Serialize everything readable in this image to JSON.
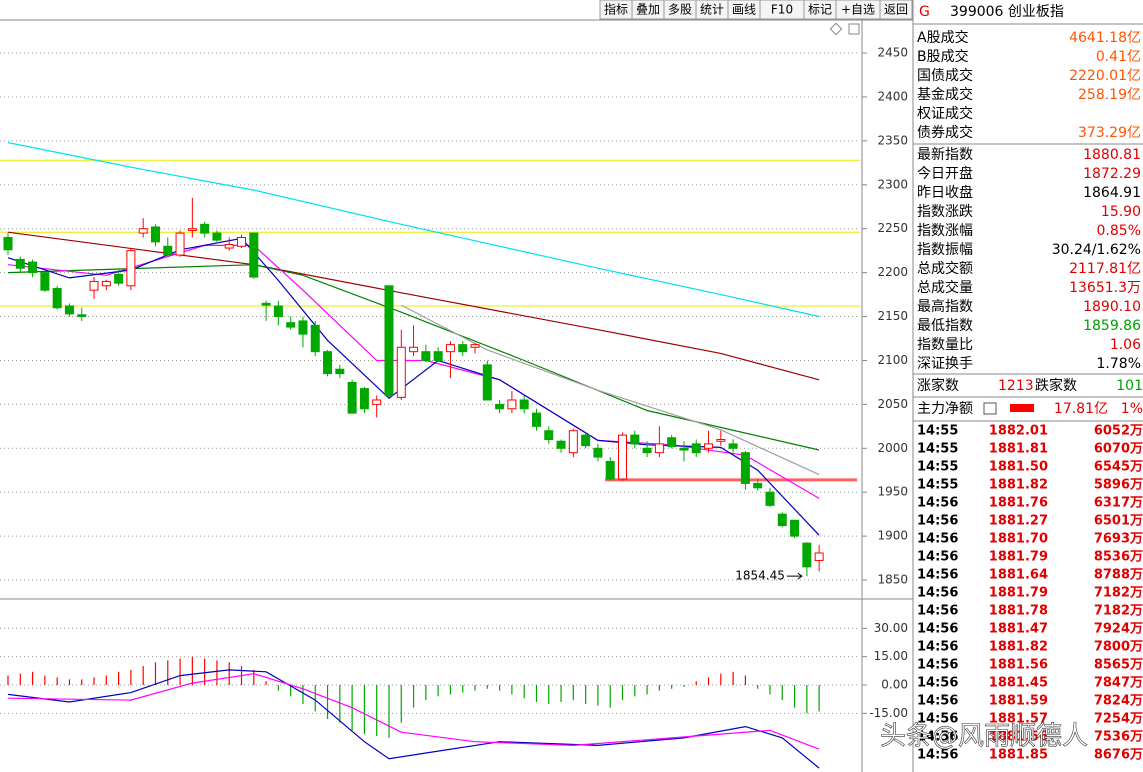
{
  "toolbar": [
    "指标",
    "叠加",
    "多股",
    "统计",
    "画线",
    "F10",
    "标记",
    "+自选",
    "返回"
  ],
  "chart_data": [
    {
      "type": "candlestick",
      "open": [
        2240,
        2215,
        2212,
        2200,
        2182,
        2162,
        2152,
        2180,
        2185,
        2198,
        2185,
        2245,
        2252,
        2230,
        2220,
        2248,
        2255,
        2245,
        2228,
        2230,
        2245,
        2165,
        2162,
        2143,
        2145,
        2140,
        2110,
        2090,
        2075,
        2068,
        2050,
        2185,
        2058,
        2110,
        2110,
        2110,
        2110,
        2118,
        2115,
        2095,
        2050,
        2045,
        2055,
        2040,
        2020,
        2008,
        1995,
        2015,
        2000,
        1985,
        1965,
        2015,
        2000,
        1995,
        2012,
        2000,
        2005,
        2000,
        2008,
        2005,
        1995,
        1960,
        1950,
        1925,
        1918,
        1892,
        1872.29
      ],
      "high": [
        2245,
        2218,
        2215,
        2202,
        2185,
        2165,
        2160,
        2195,
        2192,
        2205,
        2228,
        2262,
        2255,
        2240,
        2248,
        2285,
        2258,
        2248,
        2240,
        2243,
        2245,
        2168,
        2168,
        2150,
        2150,
        2145,
        2112,
        2095,
        2078,
        2070,
        2060,
        2185,
        2135,
        2140,
        2118,
        2115,
        2122,
        2122,
        2120,
        2100,
        2055,
        2065,
        2060,
        2045,
        2025,
        2010,
        2022,
        2018,
        2005,
        1990,
        2018,
        2020,
        2008,
        2025,
        2015,
        2008,
        2010,
        2020,
        2020,
        2010,
        1997,
        1965,
        1955,
        1927,
        1918,
        1893,
        1890.1
      ],
      "low": [
        2220,
        2200,
        2195,
        2178,
        2158,
        2150,
        2145,
        2170,
        2180,
        2185,
        2180,
        2240,
        2230,
        2218,
        2218,
        2240,
        2240,
        2235,
        2225,
        2228,
        2193,
        2145,
        2140,
        2135,
        2115,
        2105,
        2082,
        2080,
        2040,
        2040,
        2035,
        2058,
        2055,
        2105,
        2098,
        2098,
        2080,
        2105,
        2108,
        2055,
        2040,
        2040,
        2040,
        2020,
        2005,
        1995,
        1990,
        2000,
        1985,
        1963,
        1963,
        2000,
        1990,
        1990,
        2000,
        1985,
        1990,
        1995,
        2003,
        1995,
        1953,
        1952,
        1933,
        1910,
        1898,
        1854.45,
        1859.86
      ],
      "close": [
        2226,
        2205,
        2200,
        2180,
        2160,
        2153,
        2150,
        2190,
        2190,
        2188,
        2225,
        2250,
        2235,
        2220,
        2245,
        2250,
        2245,
        2237,
        2232,
        2240,
        2195,
        2163,
        2150,
        2138,
        2130,
        2110,
        2085,
        2085,
        2040,
        2045,
        2055,
        2060,
        2115,
        2115,
        2100,
        2100,
        2118,
        2110,
        2118,
        2055,
        2045,
        2055,
        2045,
        2025,
        2010,
        2000,
        2020,
        2003,
        1990,
        1965,
        2015,
        2005,
        1995,
        2005,
        2002,
        1998,
        1995,
        2005,
        2010,
        2000,
        1960,
        1955,
        1935,
        1912,
        1900,
        1865,
        1880.81
      ],
      "up_color": "#ff0000",
      "down_color": "#00a800",
      "lines": [
        {
          "color": "#00e0f0",
          "x": [
            0,
            10,
            20,
            32,
            48,
            58,
            66
          ],
          "values": [
            2348,
            2320,
            2294,
            2255,
            2205,
            2175,
            2150
          ]
        },
        {
          "color": "#a00000",
          "x": [
            0,
            20,
            32,
            48,
            58,
            66
          ],
          "values": [
            2246,
            2209,
            2177,
            2135,
            2108,
            2078
          ]
        },
        {
          "color": "#008000",
          "x": [
            0,
            20,
            24,
            32,
            42,
            52,
            66
          ],
          "values": [
            2200,
            2209,
            2197,
            2155,
            2100,
            2043,
            1998
          ]
        },
        {
          "color": "#a0a0a0",
          "x": [
            32,
            39,
            48,
            58,
            66
          ],
          "values": [
            2163,
            2112,
            2066,
            2021,
            1970
          ]
        },
        {
          "color": "#ff00ff",
          "x": [
            0,
            8,
            16,
            20,
            24,
            30,
            34,
            40,
            48,
            54,
            60,
            66
          ],
          "values": [
            2209,
            2197,
            2231,
            2231,
            2180,
            2100,
            2100,
            2078,
            2009,
            2004,
            1992,
            1943
          ]
        },
        {
          "color": "#0000c0",
          "x": [
            0,
            5,
            10,
            14,
            19,
            22,
            26,
            31,
            35,
            40,
            48,
            52,
            58,
            61,
            66
          ],
          "values": [
            2217,
            2194,
            2203,
            2226,
            2239,
            2191,
            2123,
            2057,
            2100,
            2078,
            2009,
            2004,
            2001,
            1975,
            1901
          ]
        }
      ],
      "hlines": [
        {
          "value": 2328,
          "color": "#e8e800"
        },
        {
          "value": 2246,
          "color": "#e8e800"
        },
        {
          "value": 2162,
          "color": "#e8e800"
        },
        {
          "value": 1964,
          "color": "#ff6060"
        }
      ],
      "annotation": "1854.45",
      "ylim": [
        1830,
        2480
      ],
      "yticks": [
        1850,
        1900,
        1950,
        2000,
        2050,
        2100,
        2150,
        2200,
        2250,
        2300,
        2350,
        2400,
        2450
      ],
      "grid": true
    },
    {
      "type": "macd",
      "values": [
        5,
        6,
        7,
        5,
        4,
        3,
        3,
        4,
        5,
        7,
        8,
        10,
        12,
        13,
        14,
        15,
        14,
        13,
        12,
        10,
        8,
        2,
        -3,
        -6,
        -10,
        -14,
        -18,
        -20,
        -24,
        -26,
        -27,
        -28,
        -20,
        -12,
        -8,
        -6,
        -5,
        -4,
        -3,
        -2,
        -3,
        -5,
        -7,
        -9,
        -10,
        -9,
        -8,
        -10,
        -11,
        -12,
        -8,
        -6,
        -5,
        -3,
        -2,
        -1,
        2,
        4,
        6,
        7,
        5,
        -2,
        -5,
        -8,
        -12,
        -15,
        -14
      ],
      "up_color": "#ff0000",
      "down_color": "#00a800",
      "lines": [
        {
          "color": "#0000c0",
          "x": [
            0,
            5,
            10,
            14,
            18,
            21,
            25,
            29,
            31,
            34,
            40,
            48,
            55,
            60,
            63,
            66
          ],
          "values": [
            -5,
            -9,
            -4,
            5,
            8,
            7,
            -8,
            -30,
            -39,
            -36,
            -30,
            -32,
            -28,
            -22,
            -28,
            -44
          ]
        },
        {
          "color": "#ff00ff",
          "x": [
            0,
            10,
            15,
            20,
            24,
            28,
            32,
            38,
            46,
            56,
            62,
            66
          ],
          "values": [
            -7,
            -8,
            1,
            6,
            -2,
            -12,
            -25,
            -30,
            -32,
            -27,
            -24,
            -34
          ]
        }
      ],
      "ylim": [
        -45,
        45
      ],
      "yticks": [
        {
          "value": -15,
          "label": "-15.00"
        },
        {
          "value": 0,
          "label": "0.00"
        },
        {
          "value": 15,
          "label": "15.00"
        },
        {
          "value": 30,
          "label": "30.00"
        }
      ],
      "grid": true
    }
  ],
  "quote_panel": {
    "code": "G",
    "title": "399006 创业板指",
    "volume_rows": [
      {
        "label": "A股成交",
        "value": "4641.18亿",
        "color": "#ff5500"
      },
      {
        "label": "B股成交",
        "value": "0.41亿",
        "color": "#ff5500"
      },
      {
        "label": "国债成交",
        "value": "2220.01亿",
        "color": "#ff5500"
      },
      {
        "label": "基金成交",
        "value": "258.19亿",
        "color": "#ff5500"
      },
      {
        "label": "权证成交"
      },
      {
        "label": "债券成交",
        "value": "373.29亿",
        "color": "#ff5500"
      }
    ],
    "index_rows": [
      {
        "label": "最新指数",
        "value": "1880.81",
        "color": "#e00000"
      },
      {
        "label": "今日开盘",
        "value": "1872.29",
        "color": "#e00000"
      },
      {
        "label": "昨日收盘",
        "value": "1864.91",
        "color": "#000000"
      },
      {
        "label": "指数涨跌",
        "value": "15.90",
        "color": "#e00000"
      },
      {
        "label": "指数涨幅",
        "value": "0.85%",
        "color": "#e00000"
      },
      {
        "label": "指数振幅",
        "value": "30.24/1.62%",
        "color": "#000000"
      },
      {
        "label": "总成交额",
        "value": "2117.81亿",
        "color": "#e00000"
      },
      {
        "label": "总成交量",
        "value": "13651.3万",
        "color": "#e00000"
      },
      {
        "label": "最高指数",
        "value": "1890.10",
        "color": "#e00000"
      },
      {
        "label": "最低指数",
        "value": "1859.86",
        "color": "#00a000"
      },
      {
        "label": "指数量比",
        "value": "1.06",
        "color": "#e00000"
      },
      {
        "label": "深证换手",
        "value": "1.78%",
        "color": "#000000"
      }
    ],
    "advance_label": "涨家数",
    "advance": "1213",
    "decline_label": "跌家数",
    "decline": "101",
    "main_flow_label": "主力净额",
    "main_flow": "17.81亿",
    "main_flow_pct": "1%"
  },
  "trades": [
    [
      "14:55",
      "1882.01",
      "6052万"
    ],
    [
      "14:55",
      "1881.81",
      "6070万"
    ],
    [
      "14:55",
      "1881.50",
      "6545万"
    ],
    [
      "14:55",
      "1881.82",
      "5896万"
    ],
    [
      "14:56",
      "1881.76",
      "6317万"
    ],
    [
      "14:56",
      "1881.27",
      "6501万"
    ],
    [
      "14:56",
      "1881.70",
      "7693万"
    ],
    [
      "14:56",
      "1881.79",
      "8536万"
    ],
    [
      "14:56",
      "1881.64",
      "8788万"
    ],
    [
      "14:56",
      "1881.79",
      "7182万"
    ],
    [
      "14:56",
      "1881.78",
      "7182万"
    ],
    [
      "14:56",
      "1881.47",
      "7924万"
    ],
    [
      "14:56",
      "1881.82",
      "7800万"
    ],
    [
      "14:56",
      "1881.56",
      "8565万"
    ],
    [
      "14:56",
      "1881.45",
      "7847万"
    ],
    [
      "14:56",
      "1881.59",
      "7824万"
    ],
    [
      "14:56",
      "1881.57",
      "7254万"
    ],
    [
      "14:56",
      "1881.56",
      "7536万"
    ],
    [
      "14:56",
      "1881.85",
      "8676万"
    ]
  ],
  "watermark": "头条@风雨顺德人"
}
